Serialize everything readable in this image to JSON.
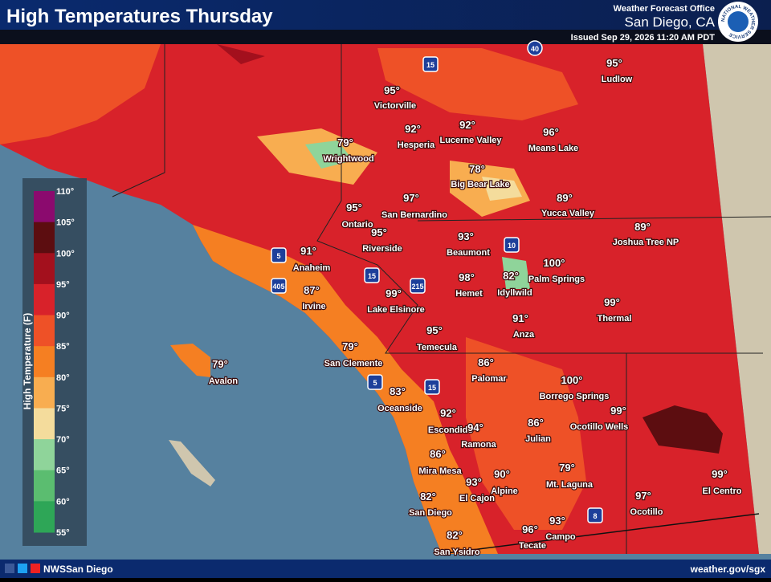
{
  "header": {
    "title": "High Temperatures Thursday",
    "office_line": "Weather Forecast Office",
    "office": "San Diego, CA",
    "issued": "Issued Sep 29, 2026 11:20 AM PDT",
    "logo_text": "NATIONAL WEATHER SERVICE"
  },
  "legend": {
    "title": "High Temperature (F)",
    "labels": [
      "110°",
      "105°",
      "100°",
      "95°",
      "90°",
      "85°",
      "80°",
      "75°",
      "70°",
      "65°",
      "60°",
      "55°"
    ],
    "colors": [
      "#8b0a6e",
      "#5c0d10",
      "#a3101d",
      "#d8222a",
      "#ee5127",
      "#f57f22",
      "#f8ad50",
      "#f4dc9c",
      "#8fd49a",
      "#5bbd70",
      "#2ea657"
    ]
  },
  "cities": [
    {
      "name": "Ludlow",
      "temp": "95°"
    },
    {
      "name": "Victorville",
      "temp": "95°"
    },
    {
      "name": "Hesperia",
      "temp": "92°"
    },
    {
      "name": "Lucerne Valley",
      "temp": "92°"
    },
    {
      "name": "Means Lake",
      "temp": "96°"
    },
    {
      "name": "Wrightwood",
      "temp": "79°"
    },
    {
      "name": "Big Bear Lake",
      "temp": "78°"
    },
    {
      "name": "Yucca Valley",
      "temp": "89°"
    },
    {
      "name": "Ontario",
      "temp": "95°"
    },
    {
      "name": "San Bernardino",
      "temp": "97°"
    },
    {
      "name": "Joshua Tree NP",
      "temp": "89°"
    },
    {
      "name": "Riverside",
      "temp": "95°"
    },
    {
      "name": "Beaumont",
      "temp": "93°"
    },
    {
      "name": "Anaheim",
      "temp": "91°"
    },
    {
      "name": "Palm Springs",
      "temp": "100°"
    },
    {
      "name": "Hemet",
      "temp": "98°"
    },
    {
      "name": "Idyllwild",
      "temp": "82°"
    },
    {
      "name": "Irvine",
      "temp": "87°"
    },
    {
      "name": "Lake Elsinore",
      "temp": "99°"
    },
    {
      "name": "Thermal",
      "temp": "99°"
    },
    {
      "name": "Anza",
      "temp": "91°"
    },
    {
      "name": "Temecula",
      "temp": "95°"
    },
    {
      "name": "San Clemente",
      "temp": "79°"
    },
    {
      "name": "Avalon",
      "temp": "79°"
    },
    {
      "name": "Palomar",
      "temp": "86°"
    },
    {
      "name": "Borrego Springs",
      "temp": "100°"
    },
    {
      "name": "Oceanside",
      "temp": "83°"
    },
    {
      "name": "Ocotillo Wells",
      "temp": "99°"
    },
    {
      "name": "Escondido",
      "temp": "92°"
    },
    {
      "name": "Ramona",
      "temp": "94°"
    },
    {
      "name": "Julian",
      "temp": "86°"
    },
    {
      "name": "Mira Mesa",
      "temp": "86°"
    },
    {
      "name": "Alpine",
      "temp": "90°"
    },
    {
      "name": "El Cajon",
      "temp": "93°"
    },
    {
      "name": "Mt. Laguna",
      "temp": "79°"
    },
    {
      "name": "El Centro",
      "temp": "99°"
    },
    {
      "name": "Ocotillo",
      "temp": "97°"
    },
    {
      "name": "San Diego",
      "temp": "82°"
    },
    {
      "name": "Campo",
      "temp": "93°"
    },
    {
      "name": "Tecate",
      "temp": "96°"
    },
    {
      "name": "San Ysidro",
      "temp": "82°"
    }
  ],
  "highways": [
    "15",
    "40",
    "5",
    "405",
    "15",
    "215",
    "10",
    "5",
    "15",
    "8"
  ],
  "footer": {
    "account": "NWSSan Diego",
    "url": "weather.gov/sgx"
  }
}
